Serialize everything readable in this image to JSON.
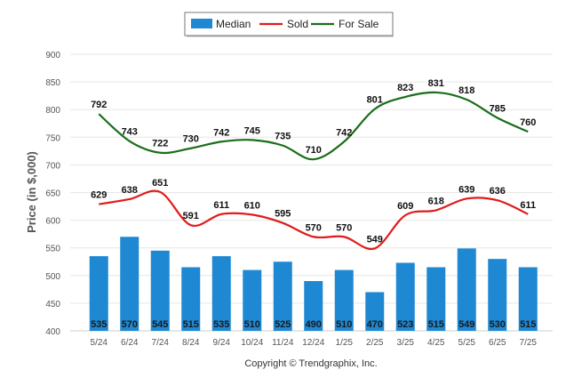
{
  "chart_data": {
    "type": "bar+line",
    "ylabel": "Price (in $,000)",
    "ylim": [
      400,
      900
    ],
    "yticks": [
      400,
      450,
      500,
      550,
      600,
      650,
      700,
      750,
      800,
      850,
      900
    ],
    "categories": [
      "5/24",
      "6/24",
      "7/24",
      "8/24",
      "9/24",
      "10/24",
      "11/24",
      "12/24",
      "1/25",
      "2/25",
      "3/25",
      "4/25",
      "5/25",
      "6/25",
      "7/25"
    ],
    "series": [
      {
        "name": "Median",
        "type": "bar",
        "color": "#1f88d2",
        "values": [
          535,
          570,
          545,
          515,
          535,
          510,
          525,
          490,
          510,
          470,
          523,
          515,
          549,
          530,
          515
        ]
      },
      {
        "name": "Sold",
        "type": "line",
        "color": "#e01b1b",
        "values": [
          629,
          638,
          651,
          591,
          611,
          610,
          595,
          570,
          570,
          549,
          609,
          618,
          639,
          636,
          611
        ]
      },
      {
        "name": "For Sale",
        "type": "line",
        "color": "#1a6e1a",
        "values": [
          792,
          743,
          722,
          730,
          742,
          745,
          735,
          710,
          742,
          801,
          823,
          831,
          818,
          785,
          760
        ]
      }
    ],
    "legend_position": "top-center",
    "grid": true
  },
  "footer": "Copyright © Trendgraphix, Inc."
}
